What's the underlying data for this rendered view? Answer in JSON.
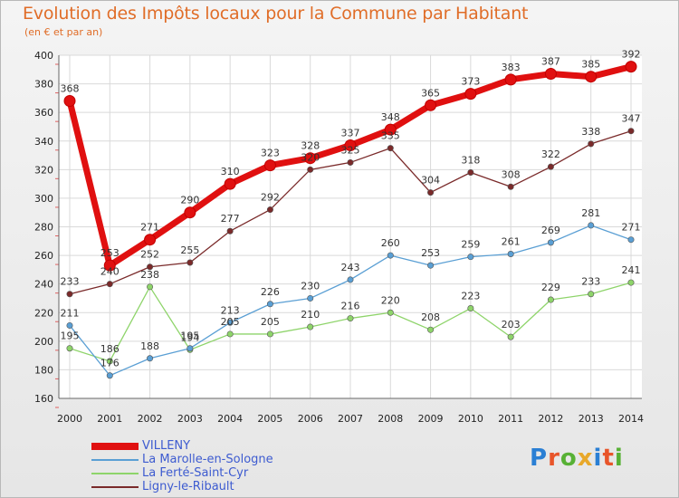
{
  "title": "Evolution des Impôts locaux pour la Commune par Habitant",
  "subtitle": "(en € et par an)",
  "logo": {
    "text": "Proxiti",
    "colors": [
      "#2a7fd4",
      "#e8552a",
      "#57b135",
      "#e8a82a",
      "#2a7fd4",
      "#e8552a",
      "#57b135"
    ]
  },
  "chart_data": {
    "type": "line",
    "x": [
      "2000",
      "2001",
      "2002",
      "2003",
      "2004",
      "2005",
      "2006",
      "2007",
      "2008",
      "2009",
      "2010",
      "2011",
      "2012",
      "2013",
      "2014"
    ],
    "ylim": [
      160,
      400
    ],
    "yticks": [
      160,
      180,
      200,
      220,
      240,
      260,
      280,
      300,
      320,
      340,
      360,
      380,
      400
    ],
    "grid": true,
    "legend": "bottom-left",
    "series": [
      {
        "name": "VILLENY",
        "color": "#e01010",
        "values": [
          368,
          253,
          271,
          290,
          310,
          323,
          328,
          337,
          348,
          365,
          373,
          383,
          387,
          385,
          392
        ]
      },
      {
        "name": "La Marolle-en-Sologne",
        "color": "#5a9fd4",
        "values": [
          211,
          176,
          188,
          195,
          213,
          226,
          230,
          243,
          260,
          253,
          259,
          261,
          269,
          281,
          271
        ]
      },
      {
        "name": "La Ferté-Saint-Cyr",
        "color": "#8ed46a",
        "values": [
          195,
          186,
          238,
          194,
          205,
          205,
          210,
          216,
          220,
          208,
          223,
          203,
          229,
          233,
          241
        ]
      },
      {
        "name": "Ligny-le-Ribault",
        "color": "#7a2a2a",
        "values": [
          233,
          240,
          252,
          255,
          277,
          292,
          320,
          325,
          335,
          304,
          318,
          308,
          322,
          338,
          347
        ]
      }
    ]
  }
}
